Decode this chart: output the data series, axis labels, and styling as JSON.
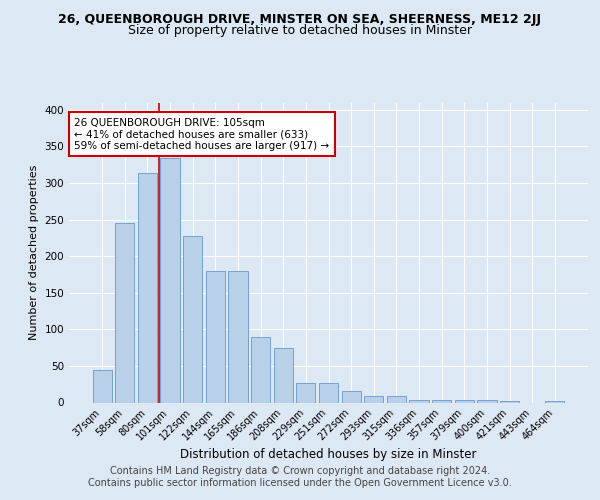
{
  "title1": "26, QUEENBOROUGH DRIVE, MINSTER ON SEA, SHEERNESS, ME12 2JJ",
  "title2": "Size of property relative to detached houses in Minster",
  "xlabel": "Distribution of detached houses by size in Minster",
  "ylabel": "Number of detached properties",
  "categories": [
    "37sqm",
    "58sqm",
    "80sqm",
    "101sqm",
    "122sqm",
    "144sqm",
    "165sqm",
    "186sqm",
    "208sqm",
    "229sqm",
    "251sqm",
    "272sqm",
    "293sqm",
    "315sqm",
    "336sqm",
    "357sqm",
    "379sqm",
    "400sqm",
    "421sqm",
    "443sqm",
    "464sqm"
  ],
  "values": [
    44,
    245,
    313,
    334,
    227,
    180,
    180,
    90,
    75,
    26,
    26,
    16,
    9,
    9,
    4,
    4,
    4,
    4,
    2,
    0,
    2
  ],
  "bar_color": "#b8d0e8",
  "bar_edge_color": "#6699cc",
  "property_line_x": 2.5,
  "annotation_text": "26 QUEENBOROUGH DRIVE: 105sqm\n← 41% of detached houses are smaller (633)\n59% of semi-detached houses are larger (917) →",
  "annotation_box_color": "#ffffff",
  "annotation_box_edge_color": "#cc0000",
  "footer_text": "Contains HM Land Registry data © Crown copyright and database right 2024.\nContains public sector information licensed under the Open Government Licence v3.0.",
  "ylim": [
    0,
    410
  ],
  "background_color": "#dce8f4",
  "plot_background_color": "#dce8f4",
  "grid_color": "#ffffff",
  "title1_fontsize": 9,
  "title2_fontsize": 9,
  "ylabel_fontsize": 8,
  "xlabel_fontsize": 8.5,
  "tick_fontsize": 7,
  "footer_fontsize": 7,
  "ann_fontsize": 7.5
}
